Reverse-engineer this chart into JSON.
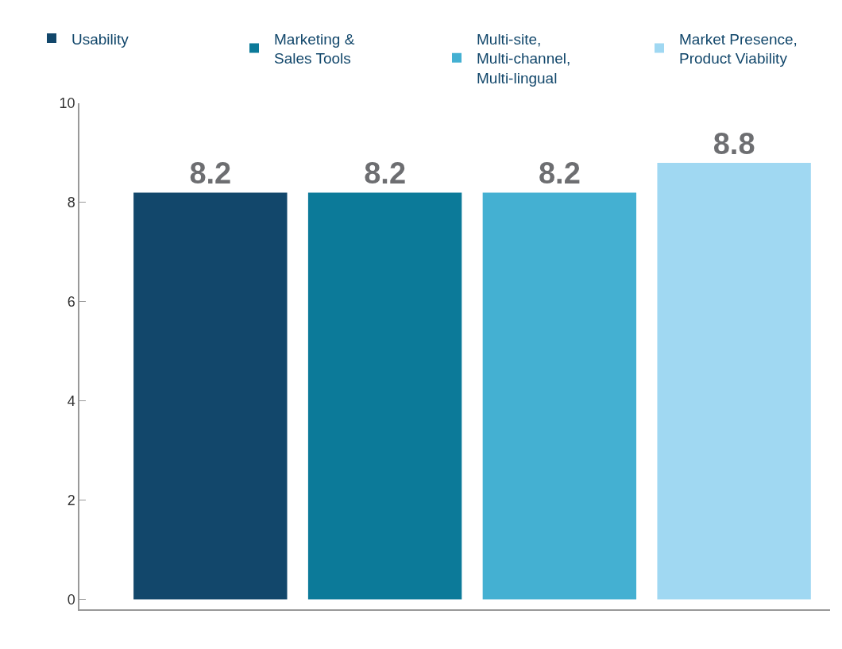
{
  "chart_data": {
    "type": "bar",
    "categories": [
      null,
      null,
      null,
      null
    ],
    "series": [
      {
        "name": "Usability",
        "color": "#12476b",
        "values": [
          8.2,
          null,
          null,
          null
        ]
      },
      {
        "name": "Marketing &\nSales Tools",
        "color": "#0c7a99",
        "values": [
          null,
          8.2,
          null,
          null
        ]
      },
      {
        "name": "Multi-site,\nMulti-channel,\nMulti-lingual",
        "color": "#44b0d2",
        "values": [
          null,
          null,
          8.2,
          null
        ]
      },
      {
        "name": "Market Presence,\nProduct Viability",
        "color": "#a0d8f2",
        "values": [
          null,
          null,
          null,
          8.8
        ]
      }
    ],
    "ylim": [
      -0.2,
      10
    ],
    "yticks": [
      0,
      2,
      4,
      6,
      8,
      10
    ],
    "data_labels": true,
    "legend": "top"
  }
}
